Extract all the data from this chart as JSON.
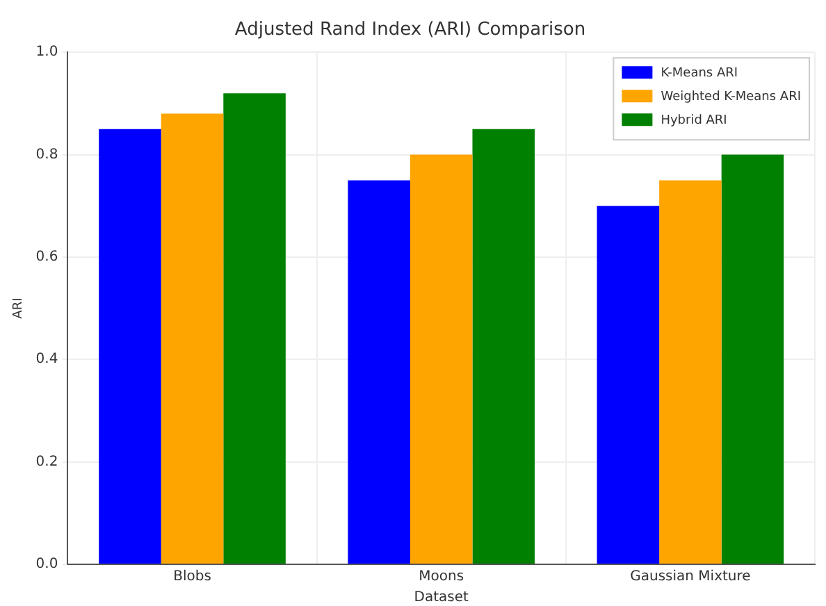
{
  "chart_data": {
    "type": "bar",
    "title": "Adjusted Rand Index (ARI) Comparison",
    "xlabel": "Dataset",
    "ylabel": "ARI",
    "categories": [
      "Blobs",
      "Moons",
      "Gaussian Mixture"
    ],
    "series": [
      {
        "name": "K-Means ARI",
        "color": "#0000ff",
        "values": [
          0.85,
          0.75,
          0.7
        ]
      },
      {
        "name": "Weighted K-Means ARI",
        "color": "#ffa500",
        "values": [
          0.88,
          0.8,
          0.75
        ]
      },
      {
        "name": "Hybrid ARI",
        "color": "#008000",
        "values": [
          0.92,
          0.85,
          0.8
        ]
      }
    ],
    "ylim": [
      0,
      1.0
    ],
    "yticks": [
      {
        "value": 0,
        "label": "0.0"
      },
      0.2,
      0.4,
      0.6,
      0.8,
      {
        "value": 1,
        "label": "1.0"
      }
    ],
    "grid": true,
    "legend": "top right"
  }
}
